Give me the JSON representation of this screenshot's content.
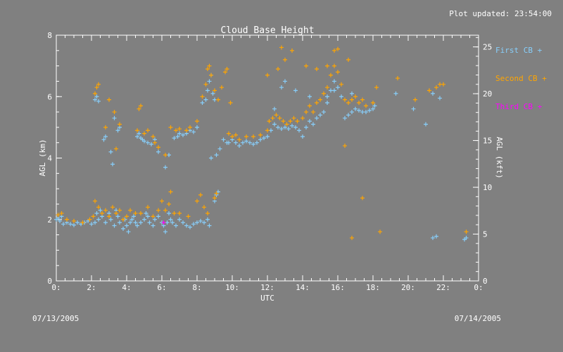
{
  "header": {
    "updated": "Plot updated: 23:54:00"
  },
  "footer": {
    "date_start": "07/13/2005",
    "date_end": "07/14/2005"
  },
  "colors": {
    "background": "#808080",
    "axis": "#ffffff",
    "first": "#87cefa",
    "second": "#ffa500",
    "third": "#ff00ff"
  },
  "chart_data": {
    "type": "scatter",
    "title": "Cloud Base Height",
    "xlabel": "UTC",
    "ylabel": "AGL (km)",
    "y2label": "AGL (kft)",
    "xlim": [
      0,
      24
    ],
    "ylim": [
      0,
      8
    ],
    "y2lim": [
      0,
      26.25
    ],
    "x_ticks": [
      "0:",
      "2:",
      "4:",
      "6:",
      "8:",
      "10:",
      "12:",
      "14:",
      "16:",
      "18:",
      "20:",
      "22:",
      "0:"
    ],
    "y_ticks": [
      "0",
      "2",
      "4",
      "6",
      "8"
    ],
    "y2_ticks": [
      "0",
      "5",
      "10",
      "15",
      "20",
      "25"
    ],
    "grid": false,
    "legend_position": "right",
    "series": [
      {
        "name": "First CB +",
        "marker": "+",
        "color": "#87cefa",
        "points": [
          [
            0.0,
            2.0
          ],
          [
            0.1,
            2.05
          ],
          [
            0.2,
            1.95
          ],
          [
            0.3,
            2.1
          ],
          [
            0.4,
            1.85
          ],
          [
            0.6,
            1.9
          ],
          [
            0.8,
            1.85
          ],
          [
            1.0,
            1.82
          ],
          [
            1.2,
            1.9
          ],
          [
            1.4,
            1.85
          ],
          [
            1.6,
            1.9
          ],
          [
            1.8,
            1.95
          ],
          [
            2.0,
            1.85
          ],
          [
            2.2,
            1.9
          ],
          [
            2.3,
            2.2
          ],
          [
            2.4,
            2.0
          ],
          [
            2.5,
            2.3
          ],
          [
            2.6,
            2.1
          ],
          [
            2.8,
            1.9
          ],
          [
            3.0,
            2.2
          ],
          [
            3.1,
            2.0
          ],
          [
            3.3,
            1.8
          ],
          [
            3.4,
            2.3
          ],
          [
            3.5,
            2.1
          ],
          [
            3.6,
            1.9
          ],
          [
            3.8,
            1.7
          ],
          [
            3.9,
            2.0
          ],
          [
            4.0,
            1.8
          ],
          [
            4.1,
            1.6
          ],
          [
            4.2,
            1.9
          ],
          [
            4.3,
            2.0
          ],
          [
            4.4,
            2.1
          ],
          [
            4.5,
            1.9
          ],
          [
            4.6,
            1.8
          ],
          [
            4.8,
            1.9
          ],
          [
            5.0,
            2.0
          ],
          [
            5.1,
            2.2
          ],
          [
            5.2,
            2.1
          ],
          [
            5.3,
            1.9
          ],
          [
            5.5,
            1.8
          ],
          [
            5.6,
            2.0
          ],
          [
            5.8,
            2.1
          ],
          [
            6.0,
            1.9
          ],
          [
            6.1,
            1.8
          ],
          [
            6.2,
            1.6
          ],
          [
            6.3,
            1.9
          ],
          [
            6.4,
            2.2
          ],
          [
            6.5,
            2.0
          ],
          [
            6.6,
            1.9
          ],
          [
            6.8,
            1.8
          ],
          [
            7.0,
            2.0
          ],
          [
            7.2,
            1.9
          ],
          [
            7.4,
            1.8
          ],
          [
            7.6,
            1.75
          ],
          [
            7.8,
            1.85
          ],
          [
            8.0,
            1.9
          ],
          [
            8.2,
            1.95
          ],
          [
            8.4,
            1.9
          ],
          [
            8.6,
            2.0
          ],
          [
            8.7,
            1.8
          ],
          [
            9.0,
            2.6
          ],
          [
            9.1,
            2.8
          ],
          [
            9.2,
            2.9
          ],
          [
            2.2,
            5.9
          ],
          [
            2.3,
            6.0
          ],
          [
            2.4,
            5.85
          ],
          [
            2.7,
            4.6
          ],
          [
            2.8,
            4.7
          ],
          [
            3.1,
            4.2
          ],
          [
            3.2,
            3.8
          ],
          [
            3.3,
            5.3
          ],
          [
            3.5,
            4.9
          ],
          [
            3.6,
            5.0
          ],
          [
            4.6,
            4.7
          ],
          [
            4.7,
            4.8
          ],
          [
            4.8,
            4.65
          ],
          [
            4.9,
            4.6
          ],
          [
            5.0,
            4.55
          ],
          [
            5.2,
            4.5
          ],
          [
            5.4,
            4.45
          ],
          [
            5.6,
            4.6
          ],
          [
            5.8,
            4.2
          ],
          [
            6.2,
            3.7
          ],
          [
            6.4,
            4.1
          ],
          [
            6.7,
            4.65
          ],
          [
            6.9,
            4.7
          ],
          [
            7.0,
            4.8
          ],
          [
            7.2,
            4.75
          ],
          [
            7.4,
            4.8
          ],
          [
            7.6,
            4.9
          ],
          [
            7.8,
            4.85
          ],
          [
            8.0,
            5.0
          ],
          [
            8.3,
            5.8
          ],
          [
            8.5,
            5.9
          ],
          [
            8.6,
            6.2
          ],
          [
            8.7,
            6.5
          ],
          [
            8.8,
            6.7
          ],
          [
            8.9,
            6.1
          ],
          [
            9.0,
            5.9
          ],
          [
            8.8,
            4.0
          ],
          [
            9.1,
            4.1
          ],
          [
            9.3,
            4.3
          ],
          [
            9.5,
            4.6
          ],
          [
            9.7,
            4.5
          ],
          [
            9.8,
            4.5
          ],
          [
            10.0,
            4.6
          ],
          [
            10.2,
            4.5
          ],
          [
            10.4,
            4.4
          ],
          [
            10.6,
            4.5
          ],
          [
            10.8,
            4.55
          ],
          [
            11.0,
            4.5
          ],
          [
            11.2,
            4.45
          ],
          [
            11.4,
            4.5
          ],
          [
            11.6,
            4.6
          ],
          [
            11.8,
            4.65
          ],
          [
            12.0,
            4.7
          ],
          [
            12.2,
            4.9
          ],
          [
            12.4,
            5.1
          ],
          [
            12.6,
            5.0
          ],
          [
            12.8,
            4.95
          ],
          [
            13.0,
            5.0
          ],
          [
            13.2,
            4.95
          ],
          [
            13.4,
            5.05
          ],
          [
            13.6,
            5.0
          ],
          [
            13.8,
            4.9
          ],
          [
            14.0,
            4.7
          ],
          [
            14.2,
            5.0
          ],
          [
            14.4,
            5.2
          ],
          [
            14.6,
            5.1
          ],
          [
            14.8,
            5.3
          ],
          [
            15.0,
            5.4
          ],
          [
            15.2,
            5.5
          ],
          [
            15.4,
            5.8
          ],
          [
            15.6,
            6.2
          ],
          [
            15.8,
            6.5
          ],
          [
            16.0,
            6.3
          ],
          [
            16.2,
            6.0
          ],
          [
            16.4,
            5.3
          ],
          [
            16.6,
            5.4
          ],
          [
            16.8,
            5.5
          ],
          [
            17.0,
            5.6
          ],
          [
            17.2,
            5.55
          ],
          [
            17.4,
            5.5
          ],
          [
            17.6,
            5.5
          ],
          [
            17.8,
            5.55
          ],
          [
            18.0,
            5.6
          ],
          [
            18.1,
            5.7
          ],
          [
            12.4,
            5.6
          ],
          [
            12.8,
            6.3
          ],
          [
            13.0,
            6.5
          ],
          [
            13.6,
            6.2
          ],
          [
            14.4,
            6.0
          ],
          [
            15.4,
            6.0
          ],
          [
            15.8,
            6.2
          ],
          [
            16.8,
            6.1
          ],
          [
            19.3,
            6.1
          ],
          [
            20.3,
            5.6
          ],
          [
            21.0,
            5.1
          ],
          [
            21.4,
            6.1
          ],
          [
            21.8,
            5.95
          ],
          [
            21.4,
            1.4
          ],
          [
            21.6,
            1.45
          ],
          [
            23.2,
            1.35
          ],
          [
            23.3,
            1.4
          ]
        ]
      },
      {
        "name": "Second CB +",
        "marker": "+",
        "color": "#ffa500",
        "points": [
          [
            0.1,
            2.15
          ],
          [
            0.3,
            2.2
          ],
          [
            0.6,
            2.0
          ],
          [
            1.0,
            1.95
          ],
          [
            1.5,
            1.9
          ],
          [
            1.9,
            2.0
          ],
          [
            2.1,
            2.1
          ],
          [
            2.2,
            2.6
          ],
          [
            2.4,
            2.4
          ],
          [
            2.6,
            2.2
          ],
          [
            2.8,
            2.3
          ],
          [
            3.0,
            2.1
          ],
          [
            3.2,
            2.4
          ],
          [
            3.4,
            2.2
          ],
          [
            3.6,
            2.3
          ],
          [
            3.8,
            2.0
          ],
          [
            4.0,
            2.1
          ],
          [
            4.2,
            2.3
          ],
          [
            4.5,
            2.2
          ],
          [
            4.8,
            2.2
          ],
          [
            5.2,
            2.4
          ],
          [
            5.5,
            2.1
          ],
          [
            5.8,
            2.3
          ],
          [
            6.0,
            2.6
          ],
          [
            6.2,
            2.3
          ],
          [
            6.4,
            2.5
          ],
          [
            6.5,
            2.9
          ],
          [
            6.7,
            2.2
          ],
          [
            7.0,
            2.2
          ],
          [
            7.5,
            2.1
          ],
          [
            8.0,
            2.6
          ],
          [
            8.2,
            2.8
          ],
          [
            8.4,
            2.4
          ],
          [
            8.6,
            2.2
          ],
          [
            9.0,
            2.7
          ],
          [
            9.1,
            2.85
          ],
          [
            2.2,
            6.1
          ],
          [
            2.3,
            6.3
          ],
          [
            2.4,
            6.4
          ],
          [
            2.8,
            5.0
          ],
          [
            3.0,
            5.9
          ],
          [
            3.3,
            5.5
          ],
          [
            3.4,
            4.3
          ],
          [
            3.6,
            5.1
          ],
          [
            4.6,
            4.9
          ],
          [
            4.7,
            5.6
          ],
          [
            4.8,
            5.7
          ],
          [
            5.0,
            4.8
          ],
          [
            5.2,
            4.9
          ],
          [
            5.5,
            4.7
          ],
          [
            5.6,
            4.5
          ],
          [
            5.8,
            4.35
          ],
          [
            6.2,
            4.1
          ],
          [
            6.5,
            5.0
          ],
          [
            6.8,
            4.9
          ],
          [
            7.0,
            4.95
          ],
          [
            7.4,
            4.9
          ],
          [
            7.6,
            5.0
          ],
          [
            8.0,
            5.2
          ],
          [
            8.3,
            6.0
          ],
          [
            8.5,
            6.4
          ],
          [
            8.6,
            6.9
          ],
          [
            8.7,
            7.0
          ],
          [
            8.8,
            6.7
          ],
          [
            9.0,
            6.2
          ],
          [
            9.2,
            5.9
          ],
          [
            9.4,
            6.3
          ],
          [
            9.6,
            6.8
          ],
          [
            9.7,
            6.9
          ],
          [
            9.9,
            5.8
          ],
          [
            9.8,
            4.8
          ],
          [
            10.0,
            4.7
          ],
          [
            10.2,
            4.75
          ],
          [
            10.4,
            4.6
          ],
          [
            10.8,
            4.7
          ],
          [
            11.2,
            4.7
          ],
          [
            11.6,
            4.75
          ],
          [
            12.0,
            4.9
          ],
          [
            12.1,
            5.2
          ],
          [
            12.3,
            5.3
          ],
          [
            12.5,
            5.4
          ],
          [
            12.7,
            5.3
          ],
          [
            12.9,
            5.2
          ],
          [
            13.1,
            5.1
          ],
          [
            13.3,
            5.2
          ],
          [
            13.5,
            5.3
          ],
          [
            13.7,
            5.2
          ],
          [
            14.0,
            5.3
          ],
          [
            14.2,
            5.5
          ],
          [
            14.4,
            5.7
          ],
          [
            14.6,
            5.5
          ],
          [
            14.8,
            5.8
          ],
          [
            15.0,
            5.9
          ],
          [
            15.2,
            6.1
          ],
          [
            15.4,
            6.3
          ],
          [
            15.6,
            6.7
          ],
          [
            15.8,
            7.0
          ],
          [
            16.0,
            6.8
          ],
          [
            16.2,
            6.4
          ],
          [
            16.4,
            5.9
          ],
          [
            16.6,
            5.8
          ],
          [
            16.8,
            5.9
          ],
          [
            17.0,
            6.0
          ],
          [
            17.2,
            5.8
          ],
          [
            17.4,
            5.9
          ],
          [
            17.6,
            5.7
          ],
          [
            18.0,
            5.8
          ],
          [
            12.0,
            6.7
          ],
          [
            12.6,
            6.9
          ],
          [
            12.8,
            7.6
          ],
          [
            13.0,
            7.2
          ],
          [
            13.4,
            7.5
          ],
          [
            14.2,
            7.0
          ],
          [
            14.8,
            6.9
          ],
          [
            15.4,
            7.0
          ],
          [
            15.8,
            7.5
          ],
          [
            16.0,
            7.55
          ],
          [
            16.6,
            7.2
          ],
          [
            16.4,
            4.4
          ],
          [
            17.4,
            2.7
          ],
          [
            18.2,
            6.3
          ],
          [
            19.4,
            6.6
          ],
          [
            20.4,
            5.9
          ],
          [
            21.2,
            6.2
          ],
          [
            21.6,
            6.3
          ],
          [
            21.8,
            6.4
          ],
          [
            22.0,
            6.4
          ],
          [
            16.8,
            1.4
          ],
          [
            18.4,
            1.6
          ],
          [
            23.3,
            1.6
          ]
        ]
      },
      {
        "name": "Third CB +",
        "marker": "+",
        "color": "#ff00ff",
        "points": [
          [
            6.1,
            1.9
          ]
        ]
      }
    ]
  }
}
